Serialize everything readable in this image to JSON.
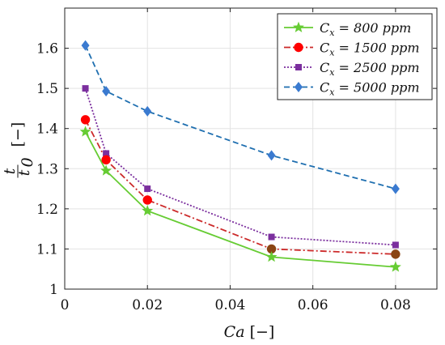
{
  "chart_data": {
    "type": "line",
    "xlabel": "Ca",
    "xlabel_unit": "[−]",
    "ylabel_num": "t",
    "ylabel_den": "t",
    "ylabel_den_sub": "0",
    "ylabel_unit": "[−]",
    "xlim": [
      0,
      0.09
    ],
    "ylim": [
      1.0,
      1.7
    ],
    "xticks": [
      0,
      0.02,
      0.04,
      0.06,
      0.08
    ],
    "xtick_labels": [
      "0",
      "0.02",
      "0.04",
      "0.06",
      "0.08"
    ],
    "yticks": [
      1.0,
      1.1,
      1.2,
      1.3,
      1.4,
      1.5,
      1.6
    ],
    "ytick_labels": [
      "1",
      "1.1",
      "1.2",
      "1.3",
      "1.4",
      "1.5",
      "1.6"
    ],
    "grid": true,
    "legend_position": "top-right",
    "x": [
      0.005,
      0.01,
      0.02,
      0.05,
      0.08
    ],
    "series": [
      {
        "name": "C_x = 800 ppm",
        "legend_var": "C",
        "legend_sub": "x",
        "legend_rest": " = 800 ppm",
        "values": [
          1.392,
          1.295,
          1.195,
          1.08,
          1.055
        ],
        "color": "#66cc33",
        "marker": "star",
        "dash": ""
      },
      {
        "name": "C_x = 1500 ppm",
        "legend_var": "C",
        "legend_sub": "x",
        "legend_rest": " = 1500 ppm",
        "values": [
          1.422,
          1.322,
          1.222,
          1.1,
          1.087
        ],
        "color": "#cc2a2a",
        "marker_color": "#ff0000",
        "marker_color_late": "#8b4513",
        "marker": "circle",
        "dash": "8,3,2,3"
      },
      {
        "name": "C_x = 2500 ppm",
        "legend_var": "C",
        "legend_sub": "x",
        "legend_rest": " = 2500 ppm",
        "values": [
          1.5,
          1.338,
          1.25,
          1.13,
          1.11
        ],
        "color": "#7b2f9e",
        "marker": "square",
        "dash": "2,2"
      },
      {
        "name": "C_x = 5000 ppm",
        "legend_var": "C",
        "legend_sub": "x",
        "legend_rest": " = 5000 ppm",
        "values": [
          1.607,
          1.493,
          1.443,
          1.333,
          1.25
        ],
        "color": "#1f6fb0",
        "marker_color": "#3a7ad0",
        "marker": "diamond",
        "dash": "7,4"
      }
    ]
  }
}
